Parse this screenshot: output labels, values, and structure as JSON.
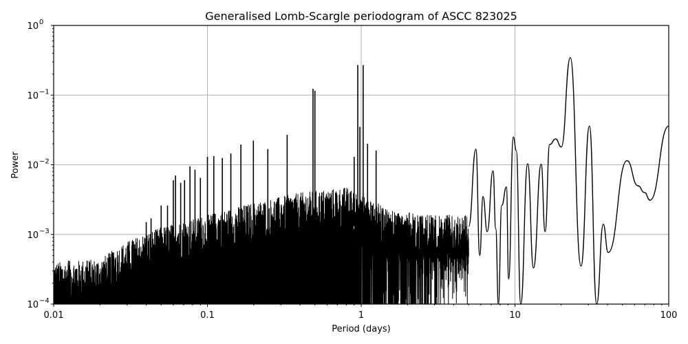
{
  "chart_data": {
    "type": "line",
    "title": "Generalised Lomb-Scargle periodogram of ASCC 823025",
    "xlabel": "Period (days)",
    "ylabel": "Power",
    "xscale": "log",
    "yscale": "log",
    "xlim": [
      0.01,
      100
    ],
    "ylim": [
      0.0001,
      1
    ],
    "grid": true,
    "legend": null,
    "line_color": "#000000",
    "grid_color": "#b0b0b0",
    "x_ticks": [
      {
        "value": 0.01,
        "label": "0.01"
      },
      {
        "value": 0.1,
        "label": "0.1"
      },
      {
        "value": 1,
        "label": "1"
      },
      {
        "value": 10,
        "label": "10"
      },
      {
        "value": 100,
        "label": "100"
      }
    ],
    "y_ticks": [
      {
        "value": 0.0001,
        "base": "10",
        "exp": "−4"
      },
      {
        "value": 0.001,
        "base": "10",
        "exp": "−3"
      },
      {
        "value": 0.01,
        "base": "10",
        "exp": "−2"
      },
      {
        "value": 0.1,
        "base": "10",
        "exp": "−1"
      },
      {
        "value": 1,
        "base": "10",
        "exp": "0"
      }
    ],
    "noise_envelope": [
      {
        "period": 0.01,
        "power": 0.00025
      },
      {
        "period": 0.02,
        "power": 0.00028
      },
      {
        "period": 0.03,
        "power": 0.0005
      },
      {
        "period": 0.05,
        "power": 0.0008
      },
      {
        "period": 0.1,
        "power": 0.0012
      },
      {
        "period": 0.2,
        "power": 0.0018
      },
      {
        "period": 0.4,
        "power": 0.0025
      },
      {
        "period": 0.8,
        "power": 0.003
      },
      {
        "period": 1.5,
        "power": 0.0015
      },
      {
        "period": 2.5,
        "power": 0.0012
      },
      {
        "period": 4.5,
        "power": 0.0012
      }
    ],
    "harmonic_peaks": [
      {
        "period": 0.0125,
        "power": 0.00042
      },
      {
        "period": 0.0165,
        "power": 0.00042
      },
      {
        "period": 0.0245,
        "power": 0.00055
      },
      {
        "period": 0.033,
        "power": 0.0008
      },
      {
        "period": 0.04,
        "power": 0.0015
      },
      {
        "period": 0.043,
        "power": 0.0017
      },
      {
        "period": 0.05,
        "power": 0.0026
      },
      {
        "period": 0.055,
        "power": 0.0026
      },
      {
        "period": 0.06,
        "power": 0.006
      },
      {
        "period": 0.062,
        "power": 0.007
      },
      {
        "period": 0.067,
        "power": 0.0055
      },
      {
        "period": 0.071,
        "power": 0.006
      },
      {
        "period": 0.077,
        "power": 0.0095
      },
      {
        "period": 0.083,
        "power": 0.0085
      },
      {
        "period": 0.09,
        "power": 0.0065
      },
      {
        "period": 0.1,
        "power": 0.013
      },
      {
        "period": 0.11,
        "power": 0.0133
      },
      {
        "period": 0.125,
        "power": 0.0125
      },
      {
        "period": 0.142,
        "power": 0.0145
      },
      {
        "period": 0.165,
        "power": 0.0195
      },
      {
        "period": 0.199,
        "power": 0.0222
      },
      {
        "period": 0.247,
        "power": 0.0168
      },
      {
        "period": 0.33,
        "power": 0.027
      },
      {
        "period": 0.486,
        "power": 0.123
      },
      {
        "period": 0.5,
        "power": 0.116
      },
      {
        "period": 0.95,
        "power": 0.27
      },
      {
        "period": 1.03,
        "power": 0.27
      },
      {
        "period": 0.98,
        "power": 0.035
      },
      {
        "period": 1.1,
        "power": 0.02
      },
      {
        "period": 1.25,
        "power": 0.016
      },
      {
        "period": 0.9,
        "power": 0.013
      }
    ],
    "smooth_segment": [
      {
        "period": 5.0,
        "power": 0.0013
      },
      {
        "period": 5.57,
        "power": 0.0168
      },
      {
        "period": 5.9,
        "power": 0.0005
      },
      {
        "period": 6.2,
        "power": 0.0035
      },
      {
        "period": 6.6,
        "power": 0.0011
      },
      {
        "period": 7.2,
        "power": 0.0082
      },
      {
        "period": 7.5,
        "power": 0.0012
      },
      {
        "period": 7.8,
        "power": 0.0001
      },
      {
        "period": 8.2,
        "power": 0.0026
      },
      {
        "period": 8.8,
        "power": 0.0048
      },
      {
        "period": 9.1,
        "power": 0.00023
      },
      {
        "period": 9.76,
        "power": 0.025
      },
      {
        "period": 10.2,
        "power": 0.016
      },
      {
        "period": 10.9,
        "power": 0.0001
      },
      {
        "period": 12.1,
        "power": 0.0104
      },
      {
        "period": 13.2,
        "power": 0.00033
      },
      {
        "period": 14.8,
        "power": 0.0102
      },
      {
        "period": 15.7,
        "power": 0.0011
      },
      {
        "period": 16.8,
        "power": 0.0195
      },
      {
        "period": 18.4,
        "power": 0.0235
      },
      {
        "period": 20.0,
        "power": 0.018
      },
      {
        "period": 22.9,
        "power": 0.346
      },
      {
        "period": 26.9,
        "power": 0.00035
      },
      {
        "period": 30.5,
        "power": 0.036
      },
      {
        "period": 34.0,
        "power": 0.0001
      },
      {
        "period": 37.5,
        "power": 0.0014
      },
      {
        "period": 40.4,
        "power": 0.00055
      },
      {
        "period": 53.5,
        "power": 0.0115
      },
      {
        "period": 63.0,
        "power": 0.005
      },
      {
        "period": 69.6,
        "power": 0.004
      },
      {
        "period": 75.6,
        "power": 0.0031
      },
      {
        "period": 100,
        "power": 0.036
      }
    ]
  }
}
